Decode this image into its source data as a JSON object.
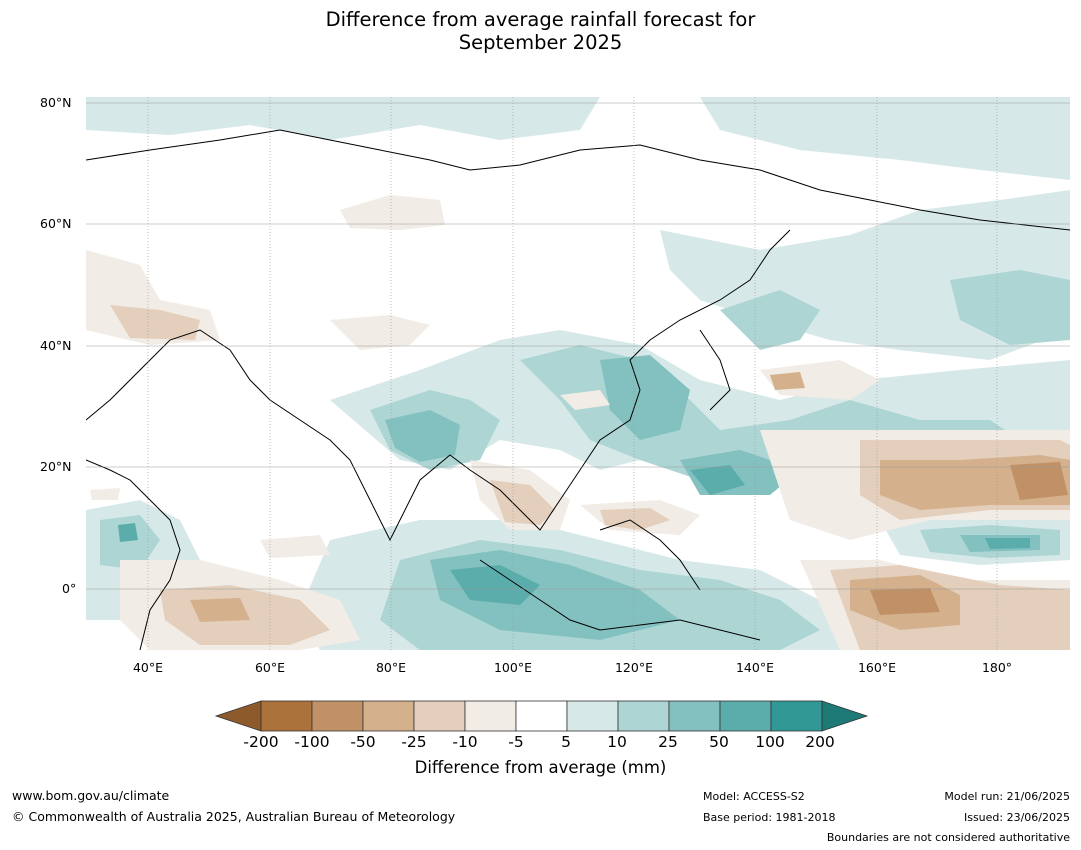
{
  "title_line1": "Difference from average rainfall forecast for",
  "title_line2": "September 2025",
  "lat_labels": [
    "80°N",
    "60°N",
    "40°N",
    "20°N",
    "0°"
  ],
  "lon_labels": [
    "40°E",
    "60°E",
    "80°E",
    "100°E",
    "120°E",
    "140°E",
    "160°E",
    "180°"
  ],
  "colorbar": {
    "title": "Difference from average (mm)",
    "ticks": [
      "-200",
      "-100",
      "-50",
      "-25",
      "-10",
      "-5",
      "5",
      "10",
      "25",
      "50",
      "100",
      "200"
    ],
    "colors": [
      "#8c5a2b",
      "#ab723b",
      "#c09166",
      "#d4b08c",
      "#e3cfbb",
      "#f1ece5",
      "#ffffff",
      "#d6e9e8",
      "#acd5d3",
      "#82c1bf",
      "#5aadab",
      "#319895",
      "#1e7a77"
    ]
  },
  "footer": {
    "website": "www.bom.gov.au/climate",
    "copyright": "© Commonwealth of Australia 2025, Australian Bureau of Meteorology",
    "model": "Model: ACCESS-S2",
    "base_period": "Base period: 1981-2018",
    "model_run": "Model run: 21/06/2025",
    "issued": "Issued: 23/06/2025",
    "disclaimer": "Boundaries are not considered authoritative"
  }
}
